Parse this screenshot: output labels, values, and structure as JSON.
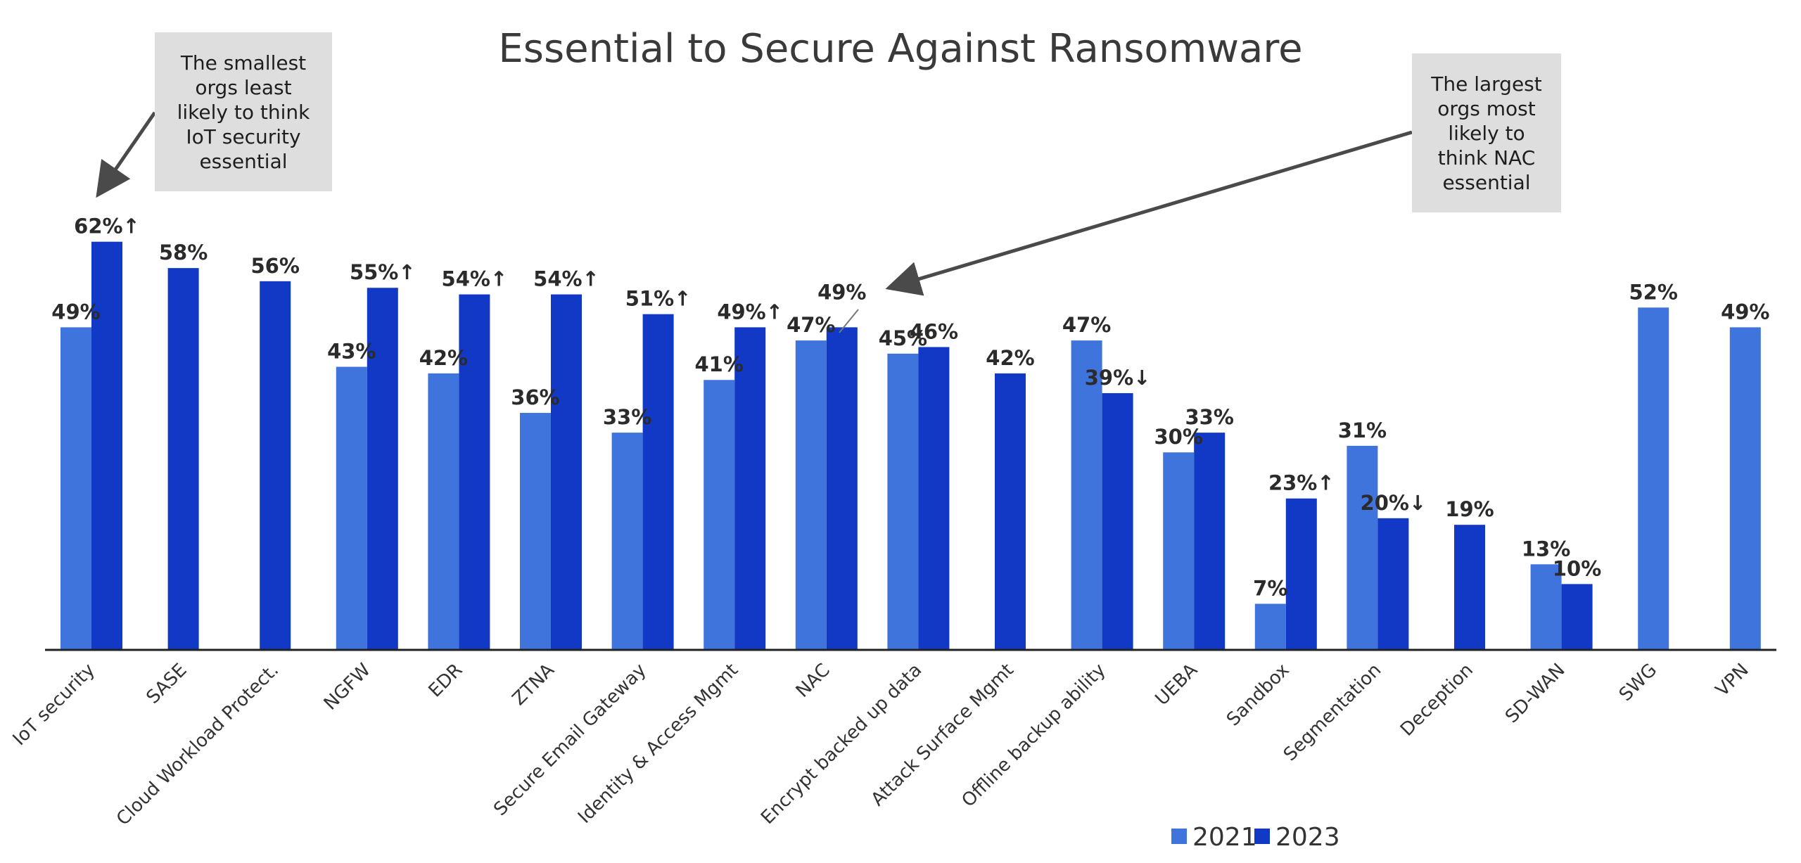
{
  "chart_data": {
    "type": "bar",
    "title": "Essential to Secure Against Ransomware",
    "xlabel": "",
    "ylabel": "",
    "ylim": [
      0,
      70
    ],
    "grid": false,
    "legend_position": "bottom-right",
    "categories": [
      "IoT security",
      "SASE",
      "Cloud Workload Protect.",
      "NGFW",
      "EDR",
      "ZTNA",
      "Secure Email Gateway",
      "Identity & Access Mgmt",
      "NAC",
      "Encrypt backed up data",
      "Attack Surface Mgmt",
      "Offline backup ability",
      "UEBA",
      "Sandbox",
      "Segmentation",
      "Deception",
      "SD-WAN",
      "SWG",
      "VPN"
    ],
    "series": [
      {
        "name": "2021",
        "color": "#3f74dd",
        "values": [
          49,
          null,
          null,
          43,
          42,
          36,
          33,
          41,
          47,
          45,
          null,
          47,
          30,
          7,
          31,
          null,
          13,
          52,
          49
        ],
        "labels": [
          "49%",
          "",
          "",
          "43%",
          "42%",
          "36%",
          "33%",
          "41%",
          "47%",
          "45%",
          "",
          "47%",
          "30%",
          "7%",
          "31%",
          "",
          "13%",
          "52%",
          "49%"
        ]
      },
      {
        "name": "2023",
        "color": "#1239c6",
        "values": [
          62,
          58,
          56,
          55,
          54,
          54,
          51,
          49,
          49,
          46,
          42,
          39,
          33,
          23,
          20,
          19,
          10,
          null,
          null
        ],
        "labels": [
          "62%↑",
          "58%",
          "56%",
          "55%↑",
          "54%↑",
          "54%↑",
          "51%↑",
          "49%↑",
          "49%",
          "46%",
          "42%",
          "39%↓",
          "33%",
          "23%↑",
          "20%↓",
          "19%",
          "10%",
          "",
          ""
        ]
      }
    ],
    "annotations": [
      {
        "text": "The smallest\norgs least\nlikely to think\nIoT security\nessential",
        "target_category": "IoT security"
      },
      {
        "text": "The largest\norgs most\nlikely to\nthink NAC\nessential",
        "target_category": "NAC"
      }
    ]
  },
  "legend": {
    "items": [
      {
        "label": "2021",
        "color": "#3f74dd"
      },
      {
        "label": "2023",
        "color": "#1239c6"
      }
    ]
  }
}
